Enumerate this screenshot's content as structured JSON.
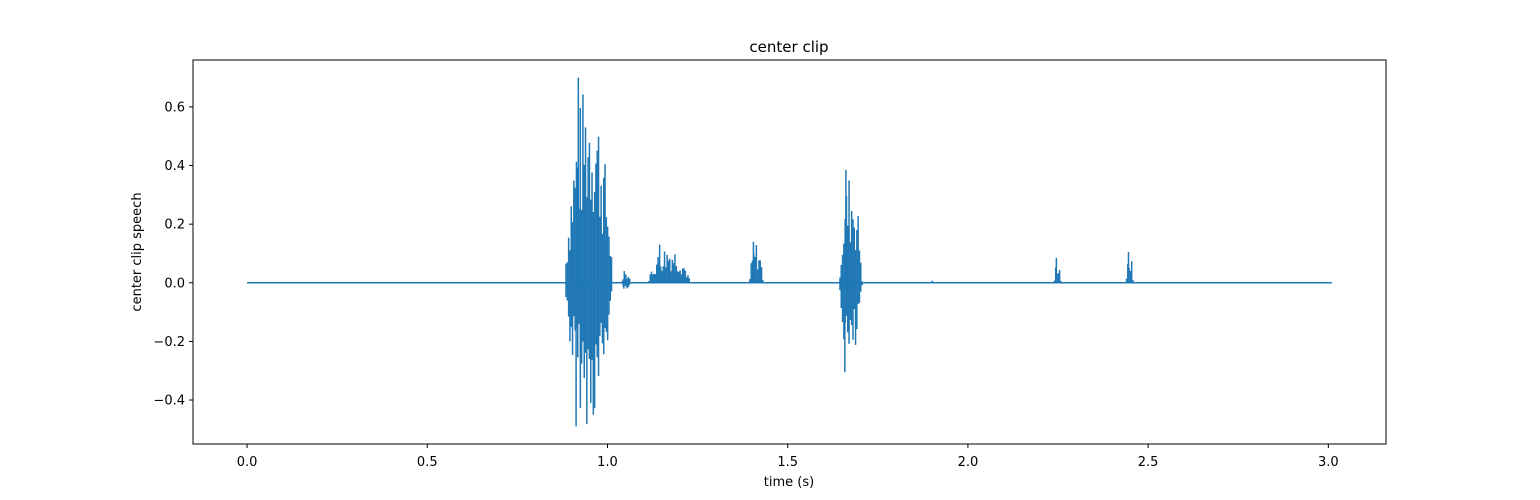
{
  "chart_data": {
    "type": "line",
    "title": "center clip",
    "xlabel": "time (s)",
    "ylabel": "center clip speech",
    "xlim": [
      -0.15,
      3.16
    ],
    "ylim": [
      -0.55,
      0.76
    ],
    "x_ticks": [
      {
        "value": 0.0,
        "label": "0.0"
      },
      {
        "value": 0.5,
        "label": "0.5"
      },
      {
        "value": 1.0,
        "label": "1.0"
      },
      {
        "value": 1.5,
        "label": "1.5"
      },
      {
        "value": 2.0,
        "label": "2.0"
      },
      {
        "value": 2.5,
        "label": "2.5"
      },
      {
        "value": 3.0,
        "label": "3.0"
      }
    ],
    "y_ticks": [
      {
        "value": -0.4,
        "label": "−0.4"
      },
      {
        "value": -0.2,
        "label": "−0.2"
      },
      {
        "value": 0.0,
        "label": "0.0"
      },
      {
        "value": 0.2,
        "label": "0.2"
      },
      {
        "value": 0.4,
        "label": "0.4"
      },
      {
        "value": 0.6,
        "label": "0.6"
      }
    ],
    "grid": false,
    "series_color": "#1f77b4",
    "x_range": [
      0.0,
      3.01
    ],
    "bursts": [
      {
        "start": 0.885,
        "end": 1.04,
        "max": 0.7,
        "min": -0.49
      },
      {
        "start": 1.04,
        "end": 1.07,
        "max": 0.04,
        "min": -0.02
      },
      {
        "start": 1.115,
        "end": 1.25,
        "max": 0.13,
        "min": 0.0
      },
      {
        "start": 1.395,
        "end": 1.44,
        "max": 0.14,
        "min": 0.0
      },
      {
        "start": 1.645,
        "end": 1.72,
        "max": 0.385,
        "min": -0.305
      },
      {
        "start": 1.9,
        "end": 1.905,
        "max": 0.007,
        "min": 0.0
      },
      {
        "start": 2.24,
        "end": 2.265,
        "max": 0.085,
        "min": 0.0
      },
      {
        "start": 2.44,
        "end": 2.465,
        "max": 0.105,
        "min": 0.0
      }
    ]
  }
}
